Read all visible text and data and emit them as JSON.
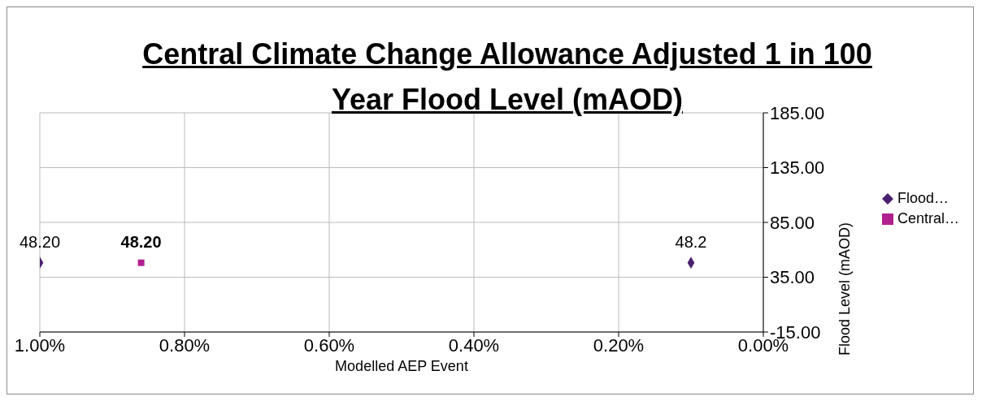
{
  "chart_data": {
    "type": "scatter",
    "title": "Central Climate Change Allowance Adjusted 1 in 100 Year Flood Level (mAOD)",
    "xlabel": "Modelled AEP Event",
    "ylabel": "Flood Level (mAOD)",
    "xlim": [
      1.0,
      0.0
    ],
    "xticks": [
      {
        "value": 1.0,
        "label": "1.00%"
      },
      {
        "value": 0.8,
        "label": "0.80%"
      },
      {
        "value": 0.6,
        "label": "0.60%"
      },
      {
        "value": 0.4,
        "label": "0.40%"
      },
      {
        "value": 0.2,
        "label": "0.20%"
      },
      {
        "value": 0.0,
        "label": "0.00%"
      }
    ],
    "ylim": [
      -15,
      185
    ],
    "yticks": [
      {
        "value": -15,
        "label": "-15.00"
      },
      {
        "value": 35,
        "label": "35.00"
      },
      {
        "value": 85,
        "label": "85.00"
      },
      {
        "value": 135,
        "label": "135.00"
      },
      {
        "value": 185,
        "label": "185.00"
      }
    ],
    "grid": true,
    "legend": "right",
    "series": [
      {
        "name": "Flood…",
        "color": "#4b1f6f",
        "marker": "diamond",
        "x": [
          1.0,
          0.1
        ],
        "values": [
          48.2,
          48.2
        ],
        "value_labels": [
          "48.20",
          "48.2"
        ]
      },
      {
        "name": "Central…",
        "color": "#b0208f",
        "marker": "square",
        "x": [
          0.86
        ],
        "values": [
          48.2
        ],
        "value_labels": [
          "48.20"
        ]
      }
    ]
  }
}
